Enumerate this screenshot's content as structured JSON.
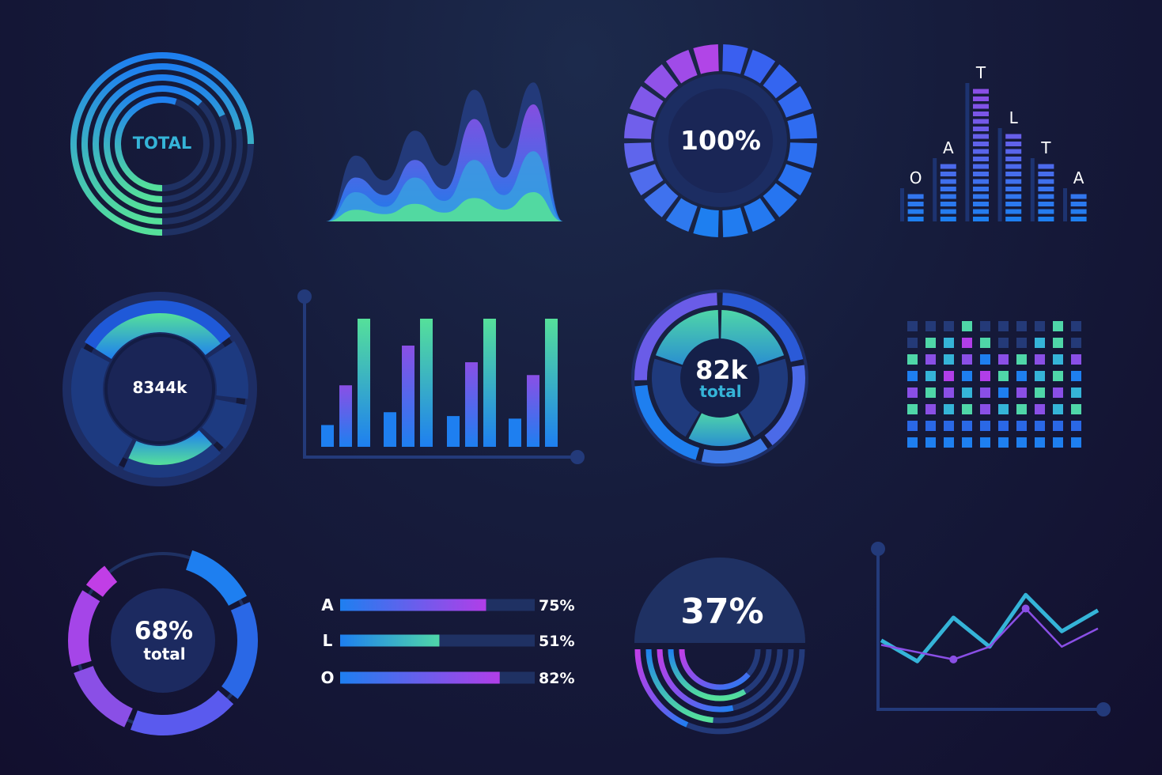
{
  "colors": {
    "background": "#151636",
    "track": "#1f3163",
    "track_light": "#2a4384",
    "blue": "#1e7ff0",
    "cyan": "#35b4d8",
    "teal": "#4fd6a8",
    "green": "#55e09a",
    "purple": "#8a4fe6",
    "magenta": "#b13ee8",
    "white": "#ffffff"
  },
  "chart_data": [
    {
      "id": "total-rings",
      "type": "radial-bar",
      "label": "TOTAL",
      "values": [
        0.75,
        0.72,
        0.68,
        0.62,
        0.55
      ]
    },
    {
      "id": "wave-area",
      "type": "area",
      "series": [
        {
          "values": [
            0,
            0.45,
            0.28,
            0.62,
            0.38,
            0.9,
            0.5,
            0.95,
            0
          ]
        },
        {
          "values": [
            0,
            0.3,
            0.18,
            0.42,
            0.22,
            0.7,
            0.3,
            0.8,
            0
          ]
        },
        {
          "values": [
            0,
            0.2,
            0.1,
            0.3,
            0.14,
            0.42,
            0.18,
            0.48,
            0
          ]
        },
        {
          "values": [
            0,
            0.08,
            0.05,
            0.12,
            0.06,
            0.16,
            0.08,
            0.2,
            0
          ]
        }
      ]
    },
    {
      "id": "percent-donut",
      "type": "pie",
      "label": "100%",
      "segments": 20,
      "value": 1.0
    },
    {
      "id": "equalizer",
      "type": "bar",
      "categories": [
        "",
        "O",
        "",
        "A",
        "",
        "T",
        "",
        "L",
        "",
        "T",
        "",
        "A"
      ],
      "values": [
        4,
        4,
        8,
        8,
        18,
        18,
        12,
        12,
        8,
        8,
        4,
        4
      ]
    },
    {
      "id": "sector-donut",
      "type": "pie",
      "label": "8344k",
      "values": [
        0.32,
        0.12,
        0.1,
        0.2,
        0.26
      ]
    },
    {
      "id": "bar-groups",
      "type": "bar",
      "series": [
        {
          "values": [
            0.17,
            0.27,
            0.24,
            0.22
          ]
        },
        {
          "values": [
            0.48,
            0.79,
            0.66,
            0.56
          ]
        },
        {
          "values": [
            1.0,
            1.0,
            1.0,
            1.0
          ]
        }
      ],
      "ylim": [
        0,
        1
      ]
    },
    {
      "id": "pie-donut",
      "type": "pie",
      "label": "82k",
      "sublabel": "total",
      "values": [
        0.22,
        0.18,
        0.14,
        0.2,
        0.26
      ]
    },
    {
      "id": "dot-matrix",
      "type": "heatmap",
      "columns": 10,
      "rows": 8
    },
    {
      "id": "segment-donut",
      "type": "pie",
      "label": "68%",
      "sublabel": "total",
      "value": 0.68
    },
    {
      "id": "progress-bars",
      "type": "bar",
      "categories": [
        "A",
        "L",
        "O"
      ],
      "values": [
        75,
        51,
        82
      ],
      "value_labels": [
        "75%",
        "51%",
        "82%"
      ]
    },
    {
      "id": "half-gauge",
      "type": "radial-bar",
      "label": "37%",
      "value": 0.37
    },
    {
      "id": "line-chart",
      "type": "line",
      "series": [
        {
          "values": [
            0.35,
            0.12,
            0.6,
            0.28,
            0.85,
            0.45,
            0.68
          ]
        },
        {
          "values": [
            0.3,
            0.22,
            0.14,
            0.28,
            0.7,
            0.28,
            0.48
          ]
        }
      ],
      "ylim": [
        0,
        1
      ]
    }
  ]
}
